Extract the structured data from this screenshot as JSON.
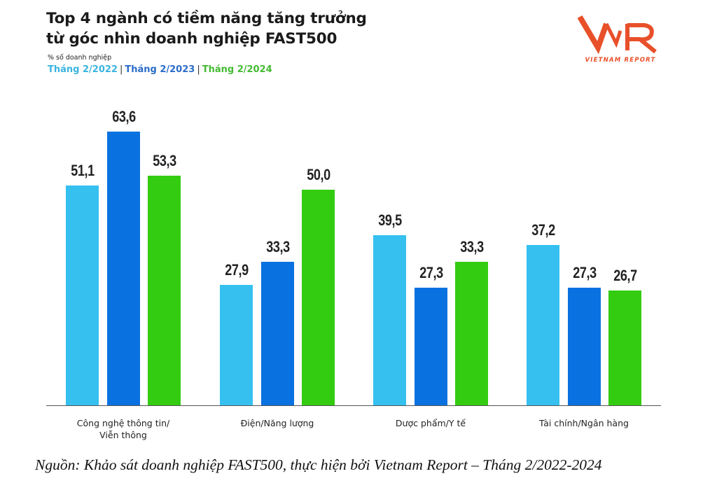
{
  "header": {
    "title_line1": "Top 4 ngành có tiềm năng tăng trưởng",
    "title_line2": "từ góc nhìn doanh nghiệp FAST500",
    "unit_label": "% số doanh nghiệp",
    "legend": [
      {
        "label": "Tháng 2/2022",
        "color": "#3ab4e0"
      },
      {
        "label": "Tháng 2/2023",
        "color": "#2a6cc8"
      },
      {
        "label": "Tháng 2/2024",
        "color": "#44bb33"
      }
    ],
    "legend_separator": "|"
  },
  "logo": {
    "mark": "VNR",
    "text": "VIETNAM REPORT",
    "color": "#e8502a"
  },
  "footer": {
    "source": "Nguồn: Khảo sát doanh nghiệp FAST500, thực hiện bởi Vietnam Report – Tháng 2/2022-2024"
  },
  "chart_data": {
    "type": "bar",
    "title": "Top 4 ngành có tiềm năng tăng trưởng từ góc nhìn doanh nghiệp FAST500",
    "subtitle": "% số doanh nghiệp",
    "xlabel": "",
    "ylabel": "% số doanh nghiệp",
    "ylim": [
      0,
      65
    ],
    "grid": false,
    "legend_position": "top-left",
    "categories": [
      "Công nghệ thông tin/\nViễn thông",
      "Điện/Năng lượng",
      "Dược phẩm/Y tế",
      "Tài chính/Ngân hàng"
    ],
    "series": [
      {
        "name": "Tháng 2/2022",
        "color": "#35c0f0",
        "values": [
          51.1,
          27.9,
          39.5,
          37.2
        ],
        "labels": [
          "51,1",
          "27,9",
          "39,5",
          "37,2"
        ]
      },
      {
        "name": "Tháng 2/2023",
        "color": "#0a72e0",
        "values": [
          63.6,
          33.3,
          27.3,
          27.3
        ],
        "labels": [
          "63,6",
          "33,3",
          "27,3",
          "27,3"
        ]
      },
      {
        "name": "Tháng 2/2024",
        "color": "#33cc11",
        "values": [
          53.3,
          50.0,
          33.3,
          26.7
        ],
        "labels": [
          "53,3",
          "50,0",
          "33,3",
          "26,7"
        ]
      }
    ]
  }
}
